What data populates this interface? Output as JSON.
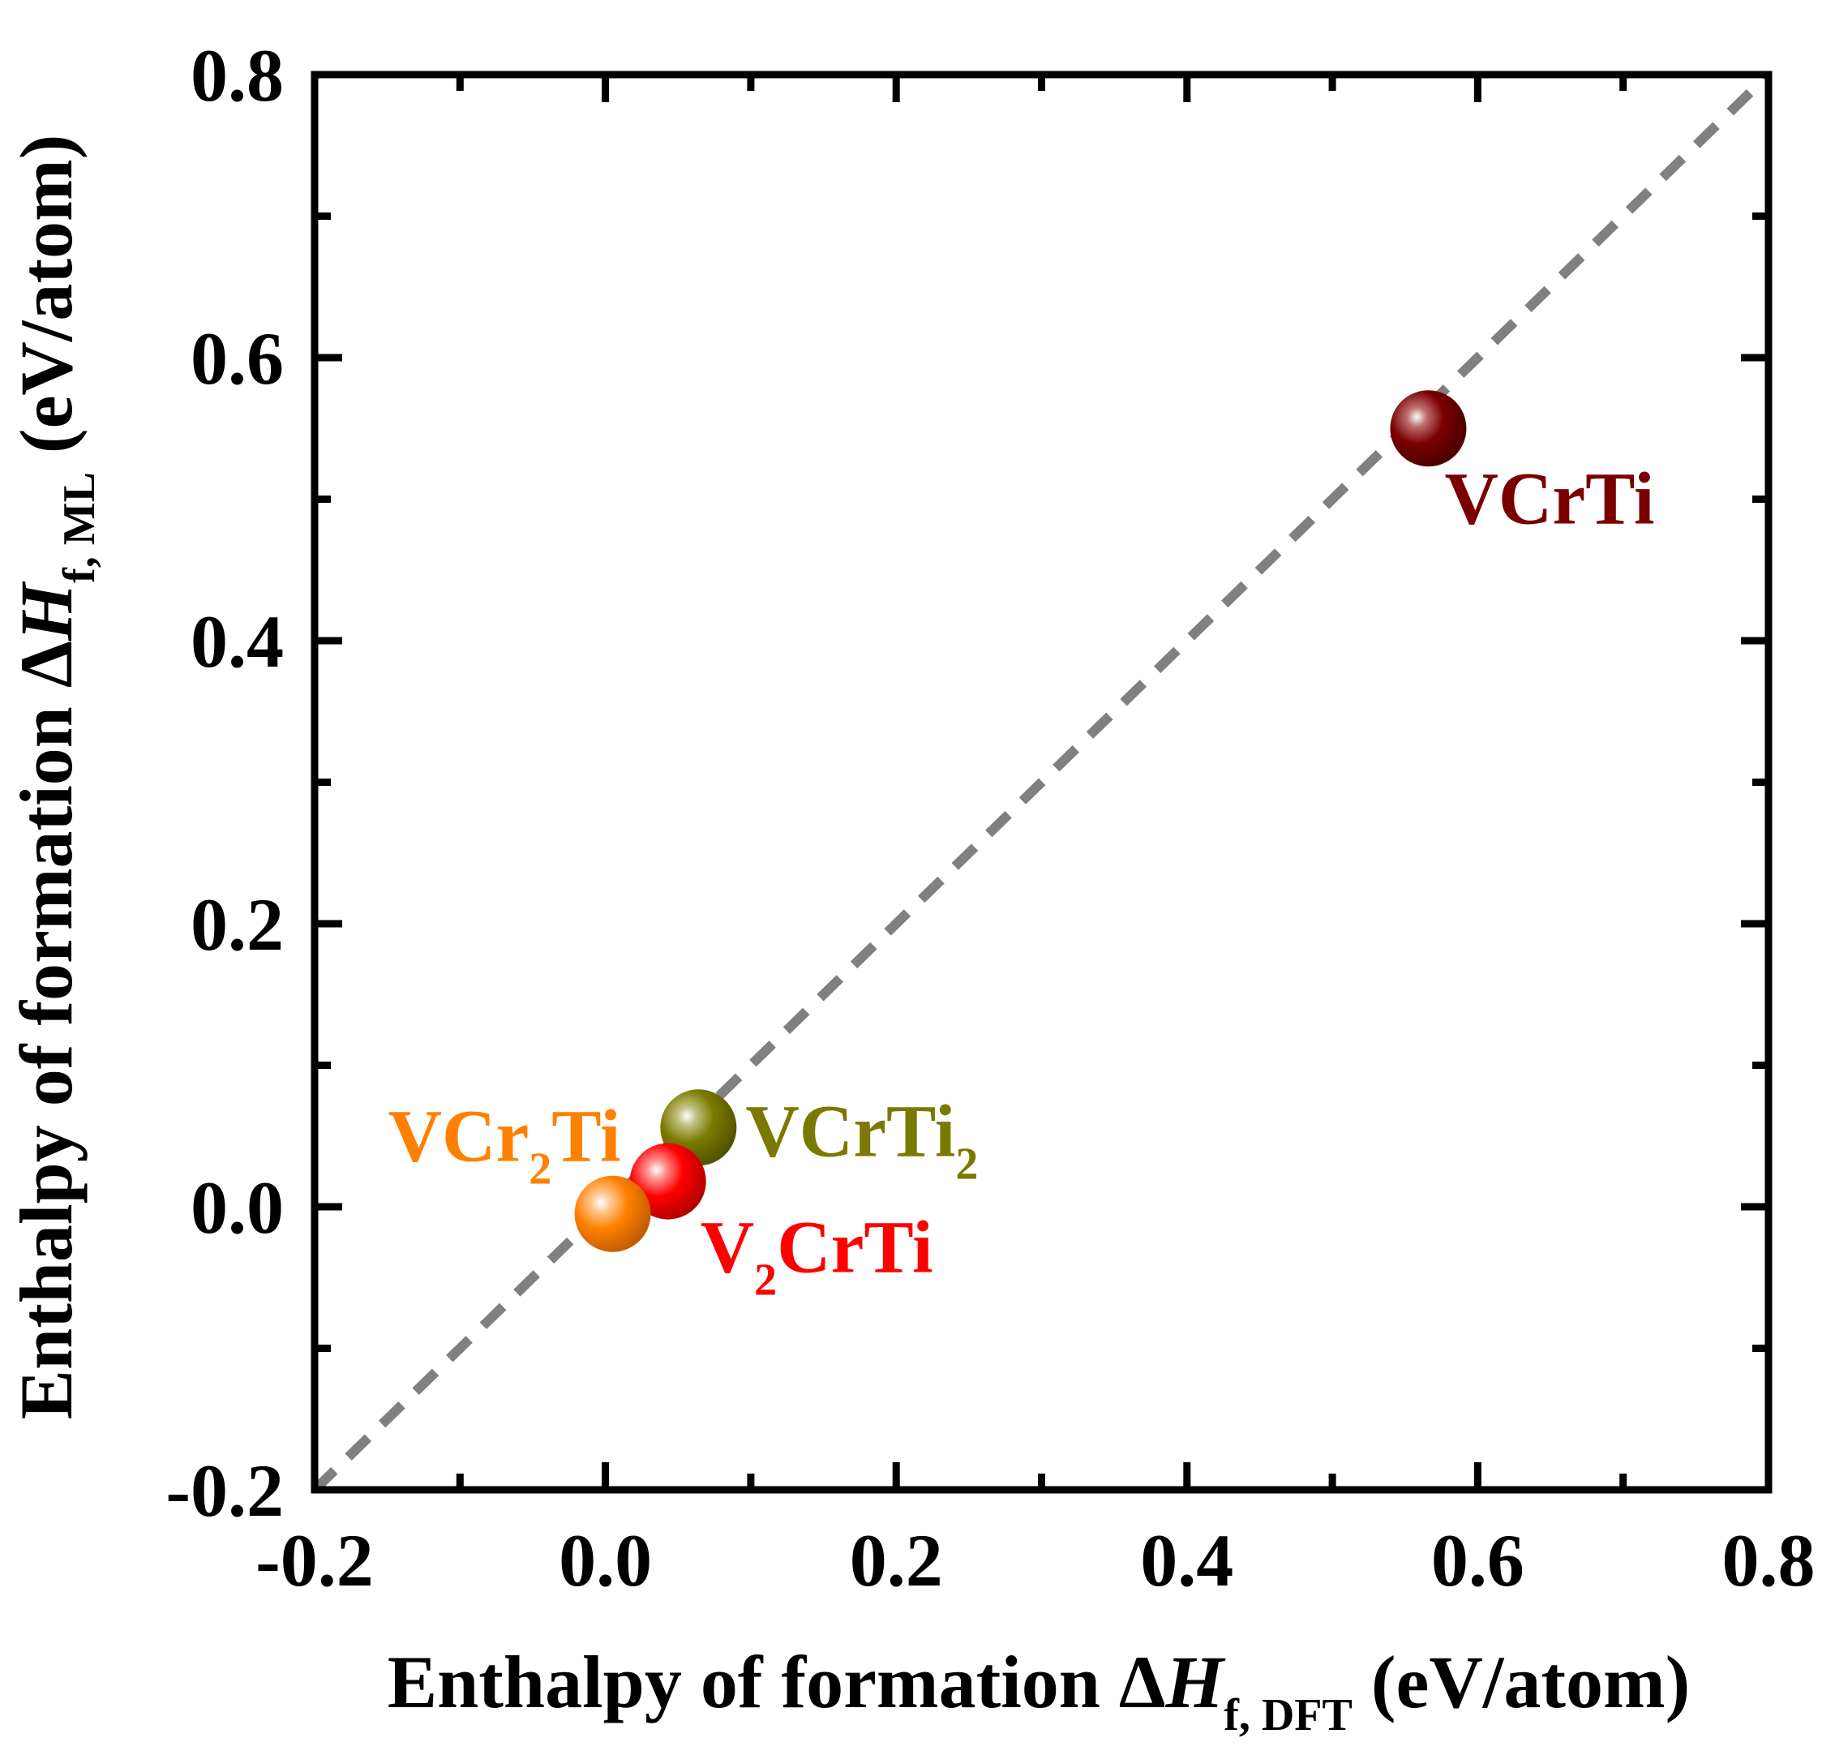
{
  "chart_data": {
    "type": "scatter",
    "title": "",
    "xlabel": {
      "prefix": "Enthalpy of formation Δ",
      "italic": "H",
      "sub": "f, DFT",
      "suffix": " (eV/atom)"
    },
    "ylabel": {
      "prefix": "Enthalpy of formation Δ",
      "italic": "H",
      "sub": "f, ML",
      "suffix": " (eV/atom)"
    },
    "xlim": [
      -0.2,
      0.8
    ],
    "ylim": [
      -0.2,
      0.8
    ],
    "xticks": [
      "-0.2",
      "0.0",
      "0.2",
      "0.4",
      "0.6",
      "0.8"
    ],
    "yticks": [
      "-0.2",
      "0.0",
      "0.2",
      "0.4",
      "0.6",
      "0.8"
    ],
    "xtick_values": [
      -0.2,
      0.0,
      0.2,
      0.4,
      0.6,
      0.8
    ],
    "ytick_values": [
      -0.2,
      0.0,
      0.2,
      0.4,
      0.6,
      0.8
    ],
    "reference_line": {
      "style": "dashed",
      "color": "#808080",
      "from": [
        -0.2,
        -0.2
      ],
      "to": [
        0.8,
        0.8
      ]
    },
    "points": [
      {
        "name": "VCrTi",
        "label_main": "VCrTi",
        "label_sub": "",
        "label_tail": "",
        "x": 0.566,
        "y": 0.55,
        "color": "#7a0000",
        "label_anchor": "below-right"
      },
      {
        "name": "VCrTi2",
        "label_main": "VCrTi",
        "label_sub": "2",
        "label_tail": "",
        "x": 0.064,
        "y": 0.056,
        "color": "#7a7a00",
        "label_anchor": "right"
      },
      {
        "name": "V2CrTi",
        "label_main": "V",
        "label_sub": "2",
        "label_tail": "CrTi",
        "x": 0.043,
        "y": 0.018,
        "color": "#ff0000",
        "label_anchor": "below-right"
      },
      {
        "name": "VCr2Ti",
        "label_main": "VCr",
        "label_sub": "2",
        "label_tail": "Ti",
        "x": 0.005,
        "y": -0.005,
        "color": "#ff8000",
        "label_anchor": "upper-left"
      }
    ]
  }
}
